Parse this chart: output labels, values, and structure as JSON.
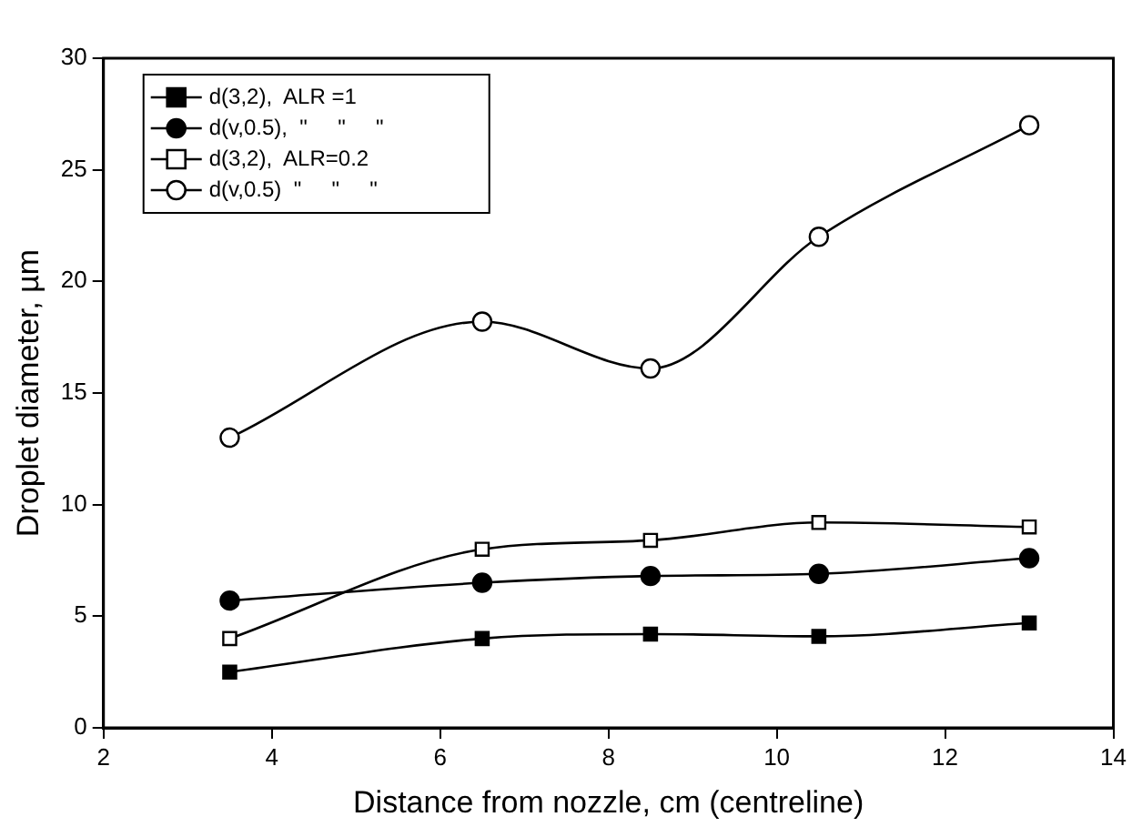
{
  "chart_data": {
    "type": "line",
    "xlabel": "Distance from nozzle, cm (centreline)",
    "ylabel": "Droplet diameter, µm",
    "x": [
      3.5,
      6.5,
      8.5,
      10.5,
      13
    ],
    "series": [
      {
        "name": "d(3,2),  ALR =1",
        "color": "#000000",
        "marker": "square",
        "values": [
          2.5,
          4.0,
          4.2,
          4.1,
          4.7
        ]
      },
      {
        "name": "d(v,0.5),  \"     \"     \"",
        "color": "#000000",
        "marker": "circle",
        "values": [
          5.7,
          6.5,
          6.8,
          6.9,
          7.6
        ]
      },
      {
        "name": "d(3,2),  ALR=0.2",
        "color": "#000000",
        "marker": "square",
        "values": [
          4.0,
          8.0,
          8.4,
          9.2,
          9.0
        ]
      },
      {
        "name": "d(v,0.5)  \"     \"     \"",
        "color": "#000000",
        "marker": "circle",
        "values": [
          13.0,
          18.2,
          16.1,
          22.0,
          27.0
        ]
      }
    ],
    "xlim": [
      2,
      14
    ],
    "xticks": [
      2,
      4,
      6,
      8,
      10,
      12,
      14
    ],
    "ylim": [
      0,
      30
    ],
    "yticks": [
      0,
      5,
      10,
      15,
      20,
      25,
      30
    ],
    "grid": false,
    "legend": "top left",
    "line_style": "solid"
  }
}
